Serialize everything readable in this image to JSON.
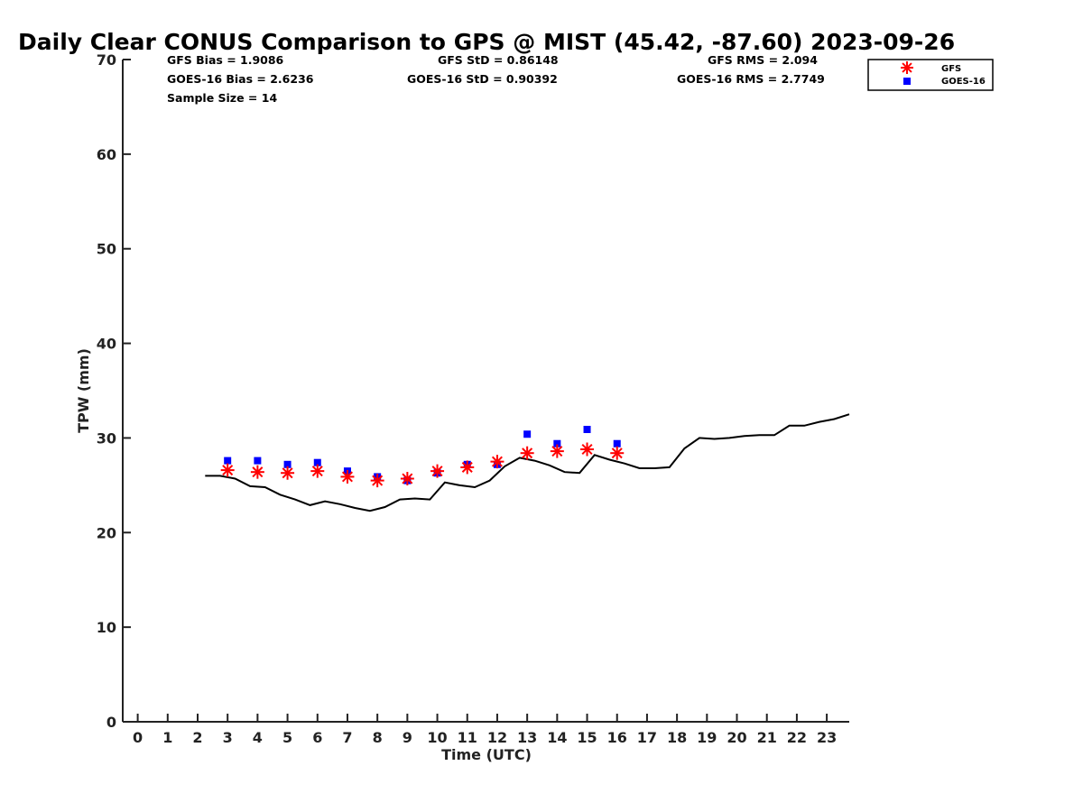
{
  "chart_data": {
    "type": "scatter",
    "title": "Daily Clear CONUS Comparison to GPS @ MIST (45.42, -87.60) 2023-09-26",
    "xlabel": "Time (UTC)",
    "ylabel": "TPW (mm)",
    "xlim": [
      -0.5,
      23.75
    ],
    "ylim": [
      0,
      70
    ],
    "x_ticks": [
      "0",
      "1",
      "2",
      "3",
      "4",
      "5",
      "6",
      "7",
      "8",
      "9",
      "10",
      "11",
      "12",
      "13",
      "14",
      "15",
      "16",
      "17",
      "18",
      "19",
      "20",
      "21",
      "22",
      "23"
    ],
    "y_ticks": [
      "0",
      "10",
      "20",
      "30",
      "40",
      "50",
      "60",
      "70"
    ],
    "grid": false,
    "legend_position": "top-right",
    "stats": {
      "gfs_bias": "GFS Bias = 1.9086",
      "goes_bias": "GOES-16 Bias = 2.6236",
      "sample_size": "Sample Size = 14",
      "gfs_std": "GFS StD = 0.86148",
      "goes_std": "GOES-16 StD = 0.90392",
      "gfs_rms": "GFS RMS = 2.094",
      "goes_rms": "GOES-16 RMS = 2.7749"
    },
    "series": [
      {
        "name": "GFS",
        "marker": "asterisk",
        "color": "#ff0000",
        "x": [
          3,
          4,
          5,
          6,
          7,
          8,
          9,
          10,
          11,
          12,
          13,
          14,
          15,
          16
        ],
        "y": [
          26.6,
          26.4,
          26.3,
          26.5,
          25.9,
          25.5,
          25.7,
          26.5,
          26.9,
          27.5,
          28.4,
          28.6,
          28.8,
          28.4
        ]
      },
      {
        "name": "GOES-16",
        "marker": "square",
        "color": "#0000ff",
        "x": [
          3,
          4,
          5,
          6,
          7,
          8,
          9,
          10,
          11,
          12,
          13,
          14,
          15,
          16
        ],
        "y": [
          27.6,
          27.6,
          27.2,
          27.4,
          26.5,
          25.9,
          25.5,
          26.3,
          27.2,
          27.2,
          30.4,
          29.4,
          30.9,
          29.4
        ]
      },
      {
        "marker": "line",
        "color": "#000000",
        "x": [
          2.25,
          2.75,
          3.25,
          3.75,
          4.25,
          4.75,
          5.25,
          5.75,
          6.25,
          6.75,
          7.25,
          7.75,
          8.25,
          8.75,
          9.25,
          9.75,
          10.25,
          10.75,
          11.25,
          11.75,
          12.25,
          12.75,
          13.25,
          13.75,
          14.25,
          14.75,
          15.25,
          15.75,
          16.25,
          16.75,
          17.25,
          17.75,
          18.25,
          18.75,
          19.25,
          19.75,
          20.25,
          20.75,
          21.25,
          21.75,
          22.25,
          22.75,
          23.25,
          23.75
        ],
        "y": [
          26.0,
          26.0,
          25.7,
          24.9,
          24.8,
          24.0,
          23.5,
          22.9,
          23.3,
          23.0,
          22.6,
          22.3,
          22.7,
          23.5,
          23.6,
          23.5,
          25.3,
          25.0,
          24.8,
          25.5,
          27.0,
          27.9,
          27.6,
          27.1,
          26.4,
          26.3,
          28.2,
          27.7,
          27.3,
          26.8,
          26.8,
          26.9,
          28.9,
          30.0,
          29.9,
          30.0,
          30.2,
          30.3,
          30.3,
          31.3,
          31.3,
          31.7,
          32.0,
          32.5
        ]
      }
    ]
  }
}
